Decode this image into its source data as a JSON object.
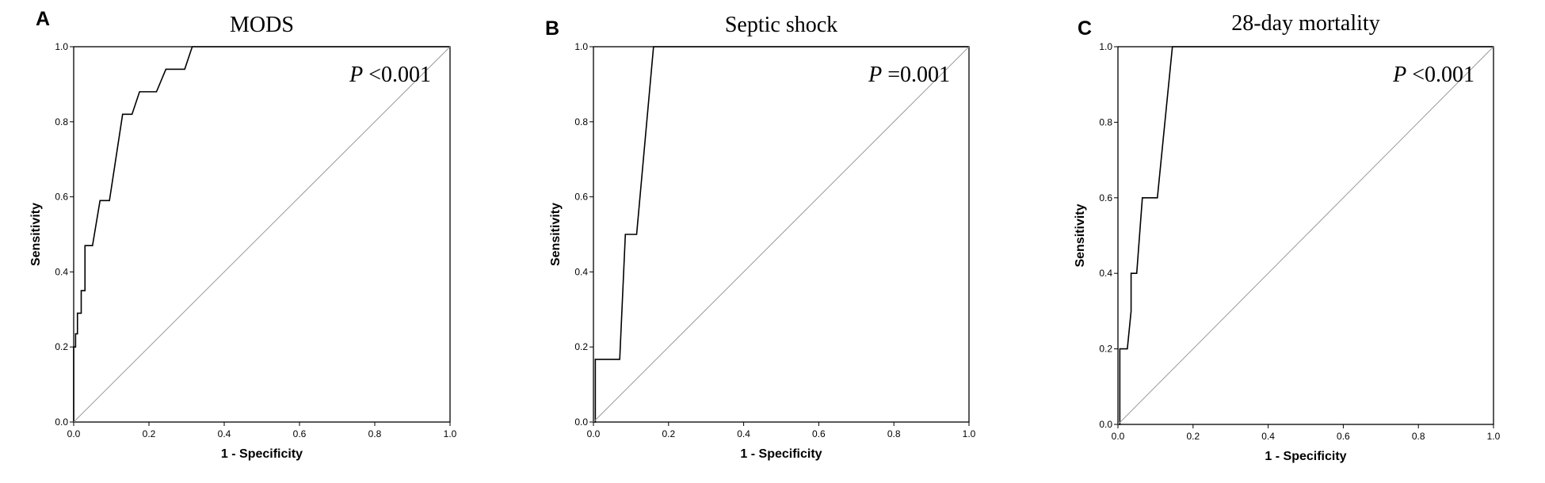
{
  "chart_data": [
    {
      "type": "line",
      "panel_label": "A",
      "title": "MODS",
      "xlabel": "1 - Specificity",
      "ylabel": "Sensitivity",
      "xlim": [
        0,
        1
      ],
      "ylim": [
        0,
        1
      ],
      "xticks": [
        "0.0",
        "0.2",
        "0.4",
        "0.6",
        "0.8",
        "1.0"
      ],
      "yticks": [
        "0.0",
        "0.2",
        "0.4",
        "0.6",
        "0.8",
        "1.0"
      ],
      "annotation": {
        "italic": "P",
        "rest": " <0.001"
      },
      "series": [
        {
          "x": [
            0,
            0,
            0.005,
            0.005,
            0.01,
            0.01,
            0.02,
            0.02,
            0.03,
            0.03,
            0.05,
            0.06,
            0.07,
            0.095,
            0.13,
            0.155,
            0.175,
            0.22,
            0.245,
            0.295,
            0.315,
            1.0
          ],
          "y": [
            0,
            0.2,
            0.2,
            0.235,
            0.235,
            0.29,
            0.29,
            0.35,
            0.35,
            0.47,
            0.47,
            0.53,
            0.59,
            0.59,
            0.82,
            0.82,
            0.88,
            0.88,
            0.94,
            0.94,
            1.0,
            1.0
          ]
        },
        {
          "x": [
            0,
            1
          ],
          "y": [
            0,
            1
          ]
        }
      ]
    },
    {
      "type": "line",
      "panel_label": "B",
      "title": "Septic shock",
      "xlabel": "1 - Specificity",
      "ylabel": "Sensitivity",
      "xlim": [
        0,
        1
      ],
      "ylim": [
        0,
        1
      ],
      "xticks": [
        "0.0",
        "0.2",
        "0.4",
        "0.6",
        "0.8",
        "1.0"
      ],
      "yticks": [
        "0.0",
        "0.2",
        "0.4",
        "0.6",
        "0.8",
        "1.0"
      ],
      "annotation": {
        "italic": "P",
        "rest": " =0.001"
      },
      "series": [
        {
          "x": [
            0,
            0.005,
            0.005,
            0.07,
            0.085,
            0.115,
            0.16,
            1.0
          ],
          "y": [
            0,
            0,
            0.167,
            0.167,
            0.5,
            0.5,
            1.0,
            1.0
          ]
        },
        {
          "x": [
            0,
            1
          ],
          "y": [
            0,
            1
          ]
        }
      ]
    },
    {
      "type": "line",
      "panel_label": "C",
      "title": "28-day mortality",
      "xlabel": "1 - Specificity",
      "ylabel": "Sensitivity",
      "xlim": [
        0,
        1
      ],
      "ylim": [
        0,
        1
      ],
      "xticks": [
        "0.0",
        "0.2",
        "0.4",
        "0.6",
        "0.8",
        "1.0"
      ],
      "yticks": [
        "0.0",
        "0.2",
        "0.4",
        "0.6",
        "0.8",
        "1.0"
      ],
      "annotation": {
        "italic": "P",
        "rest": " <0.001"
      },
      "series": [
        {
          "x": [
            0,
            0.005,
            0.005,
            0.025,
            0.035,
            0.035,
            0.05,
            0.065,
            0.075,
            0.105,
            0.145,
            1.0
          ],
          "y": [
            0,
            0,
            0.2,
            0.2,
            0.3,
            0.4,
            0.4,
            0.6,
            0.6,
            0.6,
            1.0,
            1.0
          ]
        },
        {
          "x": [
            0,
            1
          ],
          "y": [
            0,
            1
          ]
        }
      ]
    }
  ]
}
